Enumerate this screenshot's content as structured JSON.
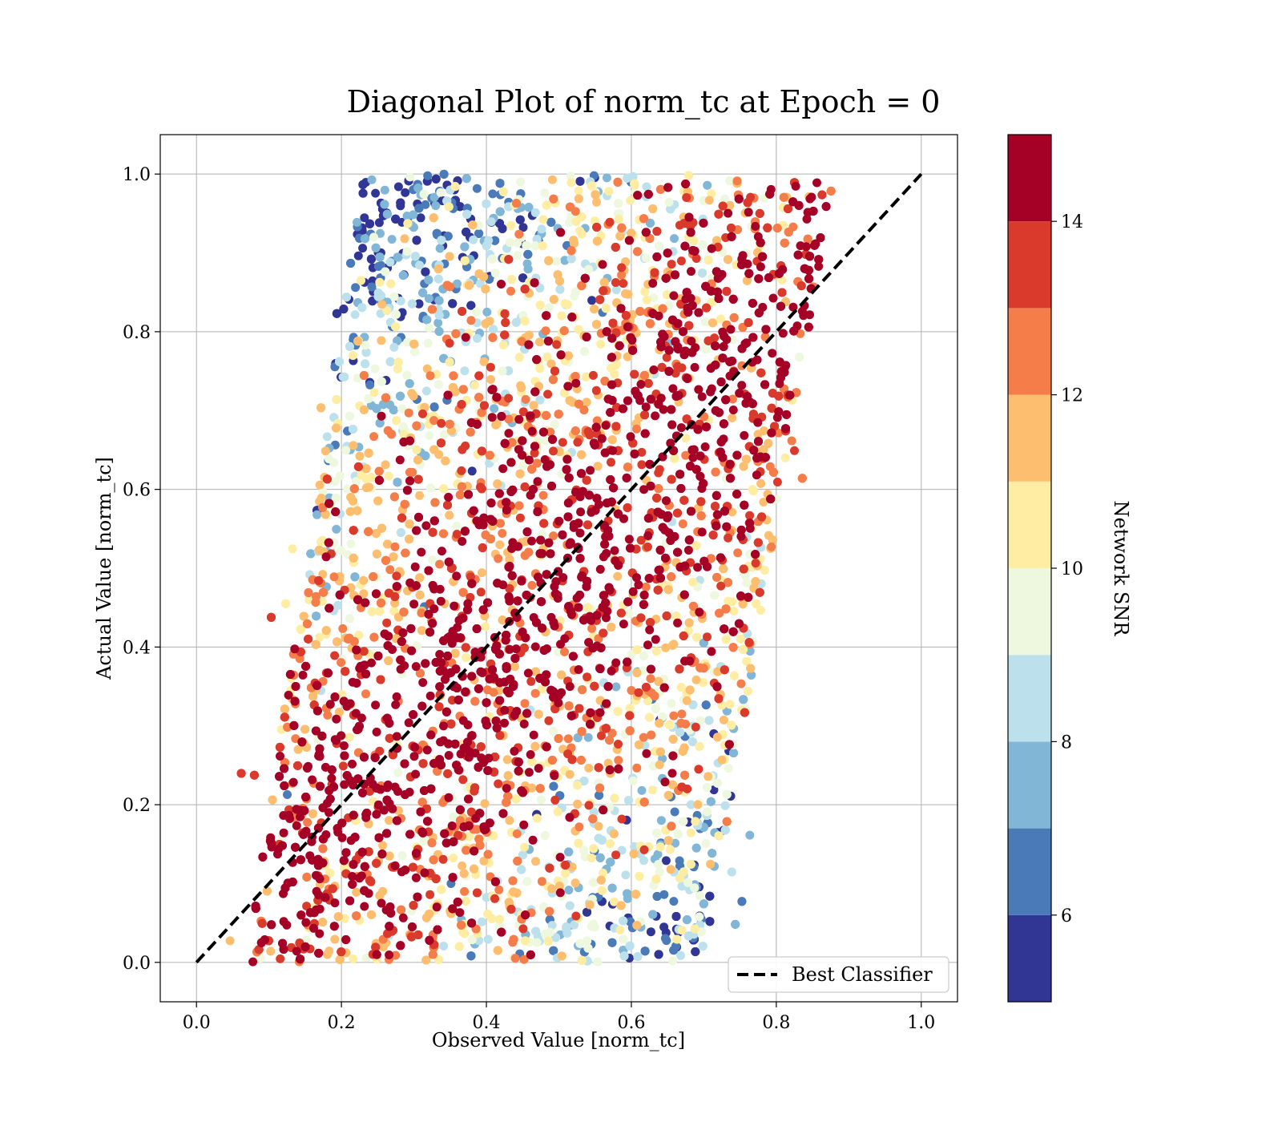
{
  "chart_data": {
    "type": "scatter",
    "title": "Diagonal Plot of norm_tc at Epoch = 0",
    "xlabel": "Observed Value [norm_tc]",
    "ylabel": "Actual Value [norm_tc]",
    "xlim": [
      -0.05,
      1.05
    ],
    "ylim": [
      -0.05,
      1.05
    ],
    "x_ticks": [
      "0.0",
      "0.2",
      "0.4",
      "0.6",
      "0.8",
      "1.0"
    ],
    "y_ticks": [
      "0.0",
      "0.2",
      "0.4",
      "0.6",
      "0.8",
      "1.0"
    ],
    "grid": true,
    "legend": {
      "placement": "lower-right",
      "entries": [
        {
          "label": "Best Classifier",
          "style": "black dashed line"
        }
      ]
    },
    "reference_line": {
      "name": "Best Classifier",
      "x": [
        0.0,
        1.0
      ],
      "y": [
        0.0,
        1.0
      ]
    },
    "scatter_summary": {
      "point_count_estimate": 20000,
      "x_band_min_at_y0": 0.07,
      "x_band_max_at_y0": 0.7,
      "x_band_min_at_y1": 0.23,
      "x_band_max_at_y1": 0.88,
      "y_range": [
        0.0,
        1.0
      ],
      "color_by": "Network SNR",
      "trend": "high SNR points cluster along the diagonal; low SNR points fall toward the band edges"
    },
    "colorbar": {
      "label": "Network SNR",
      "range": [
        5,
        15
      ],
      "ticks": [
        "6",
        "8",
        "10",
        "12",
        "14"
      ],
      "levels": [
        {
          "from": 5,
          "to": 6,
          "color": "#313695"
        },
        {
          "from": 6,
          "to": 7,
          "color": "#4a7ab7"
        },
        {
          "from": 7,
          "to": 8,
          "color": "#82b6d6"
        },
        {
          "from": 8,
          "to": 9,
          "color": "#bde1ec"
        },
        {
          "from": 9,
          "to": 10,
          "color": "#eef8df"
        },
        {
          "from": 10,
          "to": 11,
          "color": "#feeda2"
        },
        {
          "from": 11,
          "to": 12,
          "color": "#fdbf6f"
        },
        {
          "from": 12,
          "to": 13,
          "color": "#f57d4a"
        },
        {
          "from": 13,
          "to": 14,
          "color": "#d93a2b"
        },
        {
          "from": 14,
          "to": 15,
          "color": "#a50026"
        }
      ]
    }
  }
}
